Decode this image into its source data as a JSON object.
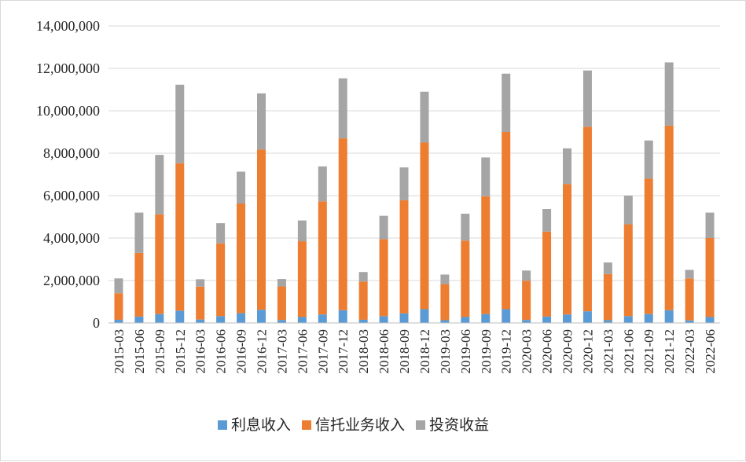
{
  "chart_data": {
    "type": "bar",
    "stacked": true,
    "categories": [
      "2015-03",
      "2015-06",
      "2015-09",
      "2015-12",
      "2016-03",
      "2016-06",
      "2016-09",
      "2016-12",
      "2017-03",
      "2017-06",
      "2017-09",
      "2017-12",
      "2018-03",
      "2018-06",
      "2018-09",
      "2018-12",
      "2019-03",
      "2019-06",
      "2019-09",
      "2019-12",
      "2020-03",
      "2020-06",
      "2020-09",
      "2020-12",
      "2021-03",
      "2021-06",
      "2021-09",
      "2021-12",
      "2022-03",
      "2022-06"
    ],
    "series": [
      {
        "name": "利息收入",
        "color": "#5b9bd5",
        "values": [
          150000,
          300000,
          420000,
          580000,
          160000,
          320000,
          460000,
          620000,
          140000,
          280000,
          400000,
          600000,
          150000,
          320000,
          450000,
          650000,
          130000,
          280000,
          420000,
          650000,
          140000,
          300000,
          400000,
          550000,
          130000,
          320000,
          420000,
          600000,
          120000,
          280000
        ]
      },
      {
        "name": "信托业务收入",
        "color": "#ed7d31",
        "values": [
          1250000,
          3000000,
          4700000,
          6950000,
          1550000,
          3430000,
          5170000,
          7550000,
          1580000,
          3570000,
          5330000,
          8100000,
          1800000,
          3630000,
          5330000,
          7850000,
          1700000,
          3600000,
          5550000,
          8350000,
          1850000,
          4000000,
          6150000,
          8700000,
          2170000,
          4330000,
          6380000,
          8700000,
          1980000,
          3720000
        ]
      },
      {
        "name": "投资收益",
        "color": "#a5a5a5",
        "values": [
          700000,
          1900000,
          2800000,
          3700000,
          350000,
          950000,
          1500000,
          2650000,
          350000,
          980000,
          1650000,
          2830000,
          450000,
          1100000,
          1550000,
          2400000,
          450000,
          1270000,
          1830000,
          2750000,
          480000,
          1070000,
          1680000,
          2650000,
          550000,
          1350000,
          1800000,
          2980000,
          400000,
          1200000
        ]
      }
    ],
    "ylim": [
      0,
      14000000
    ],
    "yticks": [
      "0",
      "2,000,000",
      "4,000,000",
      "6,000,000",
      "8,000,000",
      "10,000,000",
      "12,000,000",
      "14,000,000"
    ],
    "grid": true,
    "legend": "bottom"
  }
}
